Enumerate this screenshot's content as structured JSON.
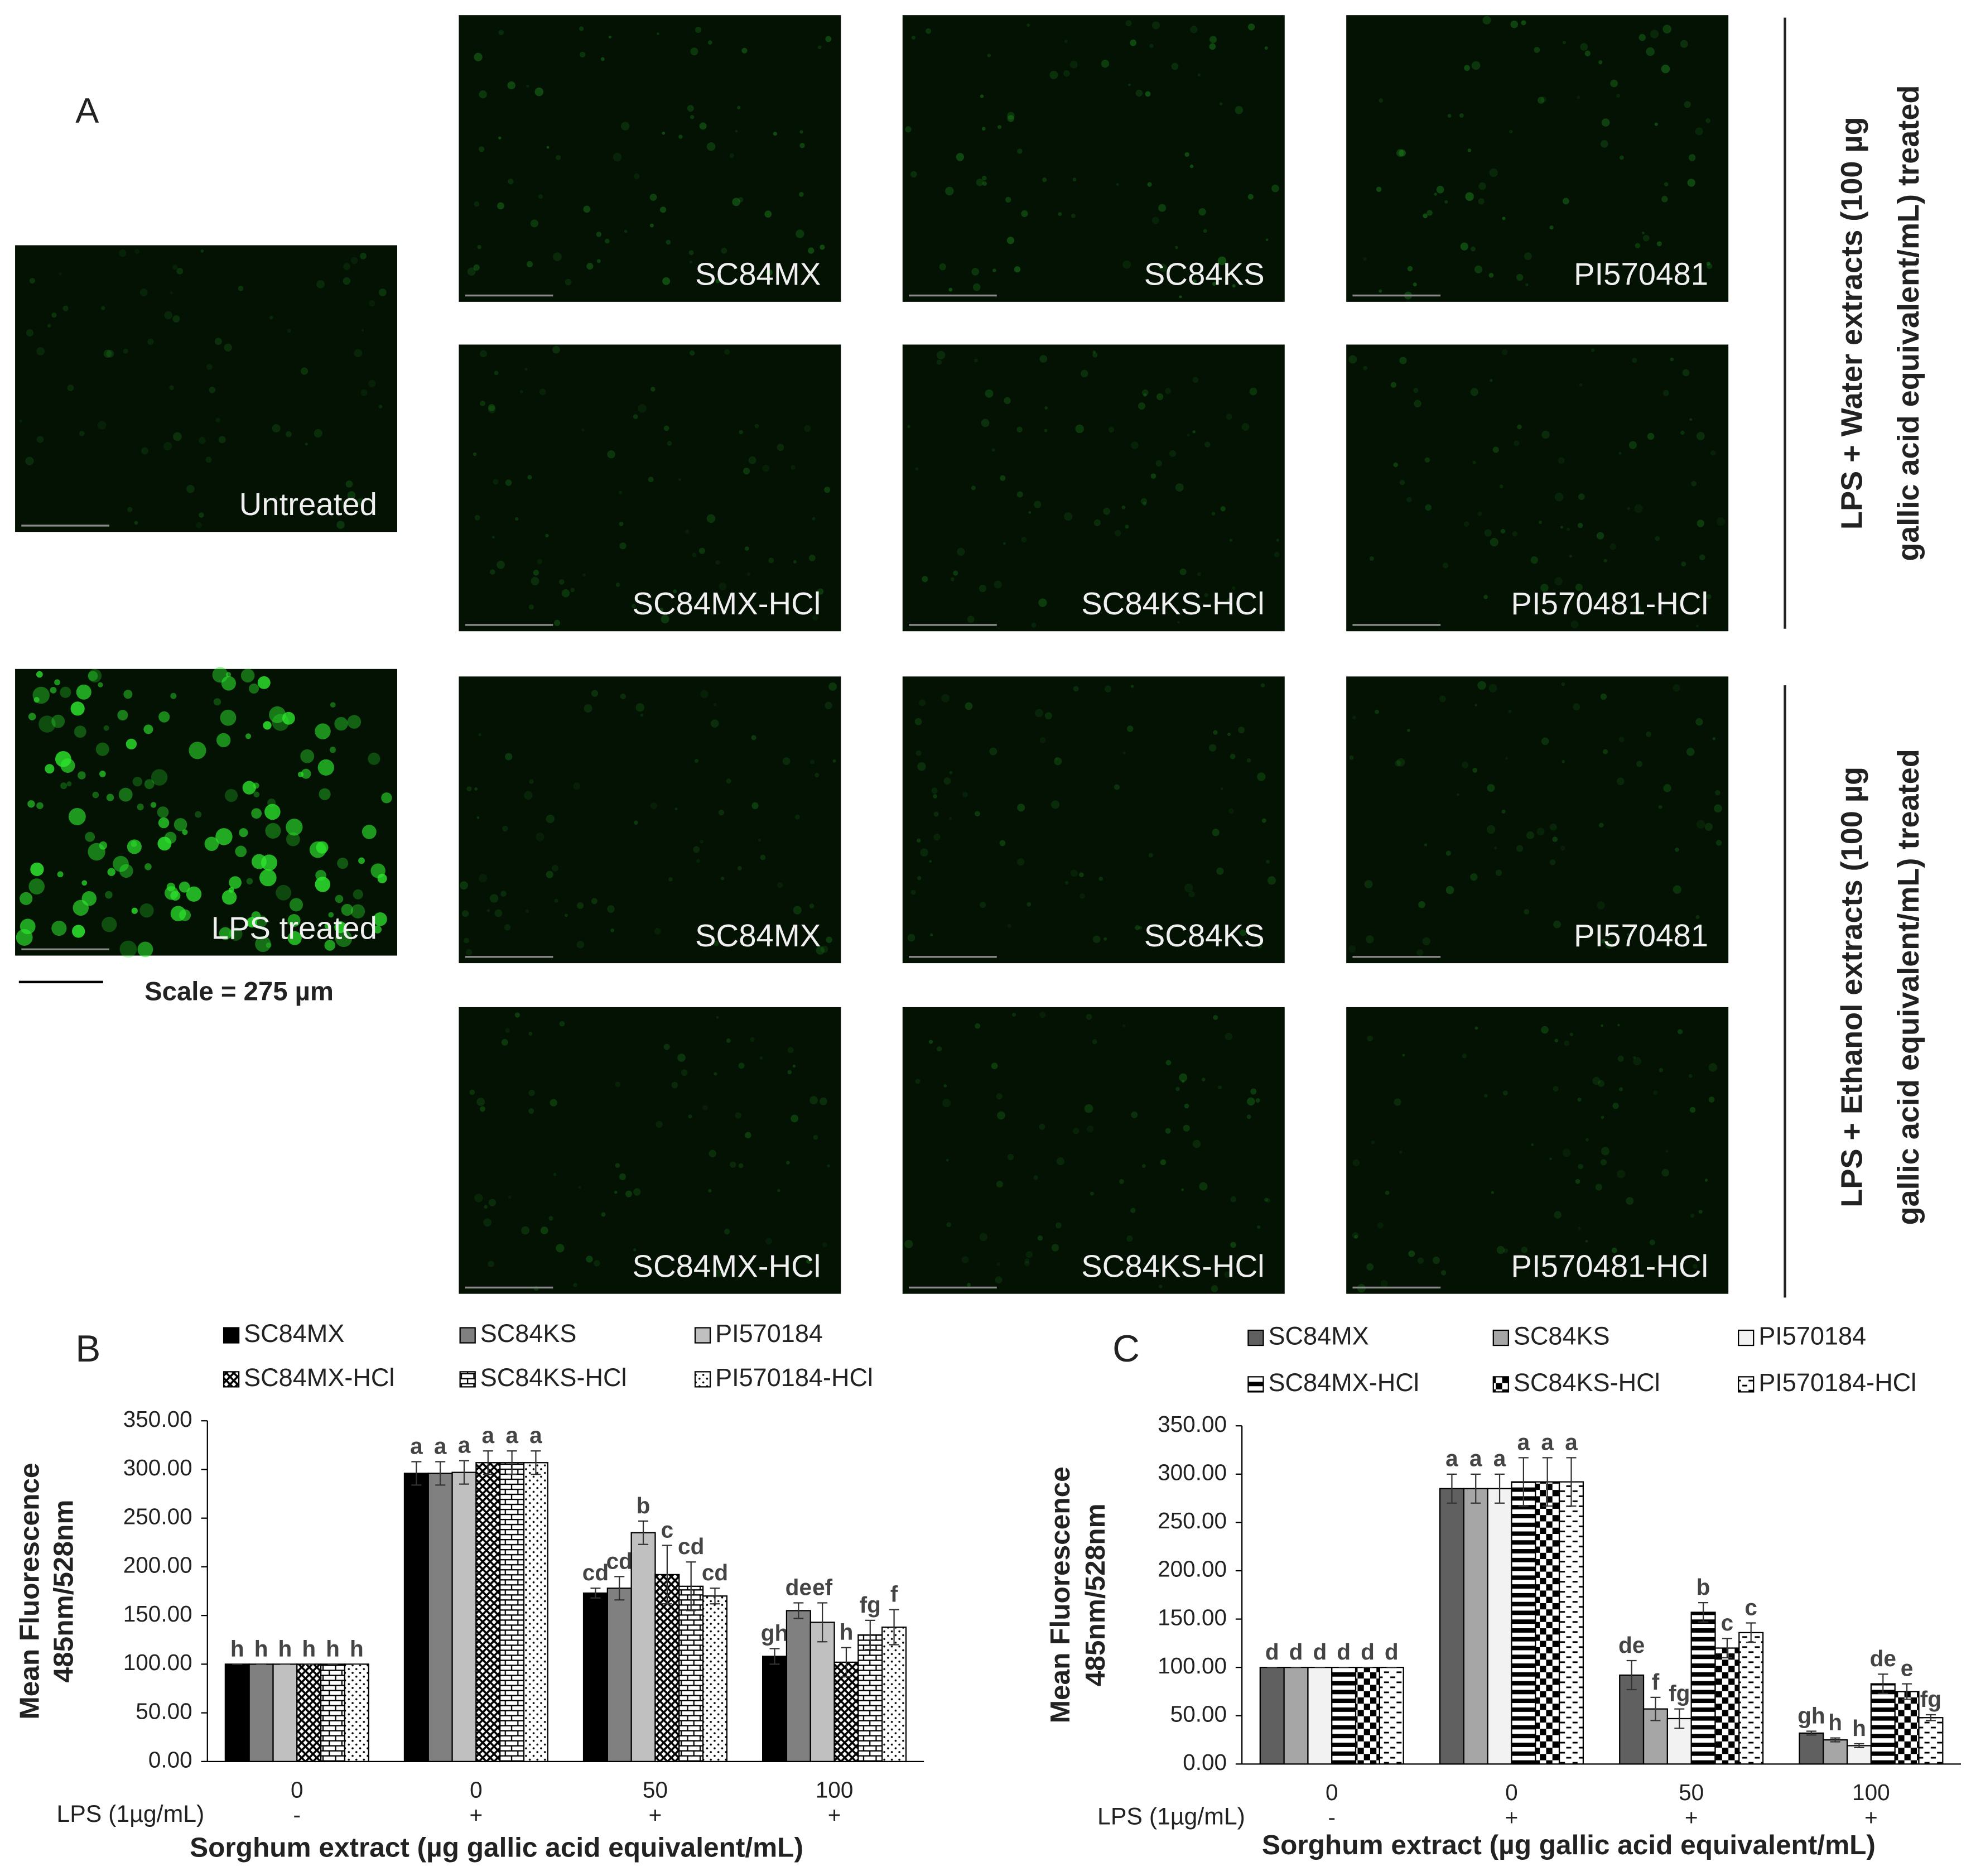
{
  "panel_a": {
    "label": "A",
    "images": [
      "Untreated",
      "LPS treated",
      "SC84MX",
      "SC84KS",
      "PI570481",
      "SC84MX-HCl",
      "SC84KS-HCl",
      "PI570481-HCl",
      "SC84MX",
      "SC84KS",
      "PI570481",
      "SC84MX-HCl",
      "SC84KS-HCl",
      "PI570481-HCl"
    ],
    "scale": "Scale = 275 µm",
    "groups": [
      [
        "LPS + Water extracts (100 µg",
        "gallic acid equivalent/mL)  treated"
      ],
      [
        "LPS + Ethanol extracts (100 µg",
        "gallic acid equivalent/mL)  treated"
      ]
    ]
  },
  "chart_data": [
    {
      "type": "bar",
      "panel_label": "B",
      "categories": [
        "0",
        "0",
        "50",
        "100"
      ],
      "lps": [
        "-",
        "+",
        "+",
        "+"
      ],
      "lps_label": "LPS (1µg/mL)",
      "x_label": "Sorghum extract (µg gallic acid equivalent/mL)",
      "y_label": [
        "Mean Fluorescence",
        "485nm/528nm"
      ],
      "ylim": [
        0,
        350
      ],
      "yticks": [
        {
          "value": 0,
          "label": "0.00"
        },
        {
          "value": 50,
          "label": "50.00"
        },
        {
          "value": 100,
          "label": "100.00"
        },
        {
          "value": 150,
          "label": "150.00"
        },
        {
          "value": 200,
          "label": "200.00"
        },
        {
          "value": 250,
          "label": "250.00"
        },
        {
          "value": 300,
          "label": "300.00"
        },
        {
          "value": 350,
          "label": "350.00"
        }
      ],
      "series": [
        {
          "name": "SC84MX",
          "color": "#000000",
          "pattern": "solid",
          "values": [
            100,
            296,
            173,
            108
          ],
          "errors": [
            0,
            12,
            5,
            8
          ],
          "significance": [
            "h",
            "a",
            "cd",
            "gh"
          ]
        },
        {
          "name": "SC84KS",
          "color": "#808080",
          "pattern": "solid",
          "values": [
            100,
            296,
            178,
            155
          ],
          "errors": [
            0,
            12,
            12,
            8
          ],
          "significance": [
            "h",
            "a",
            "cd",
            "de"
          ]
        },
        {
          "name": "PI570184",
          "color": "#c0c0c0",
          "pattern": "solid",
          "values": [
            100,
            297,
            235,
            143
          ],
          "errors": [
            0,
            12,
            12,
            20
          ],
          "significance": [
            "h",
            "a",
            "b",
            "ef"
          ]
        },
        {
          "name": "SC84MX-HCl",
          "color": "#000000",
          "pattern": "crosshatch",
          "values": [
            100,
            307,
            192,
            102
          ],
          "errors": [
            0,
            12,
            30,
            15
          ],
          "significance": [
            "h",
            "a",
            "c",
            "h"
          ]
        },
        {
          "name": "SC84KS-HCl",
          "color": "#000000",
          "pattern": "brick",
          "values": [
            100,
            307,
            180,
            130
          ],
          "errors": [
            0,
            12,
            25,
            15
          ],
          "significance": [
            "h",
            "a",
            "cd",
            "fg"
          ]
        },
        {
          "name": "PI570184-HCl",
          "color": "#000000",
          "pattern": "dots",
          "values": [
            100,
            307,
            170,
            138
          ],
          "errors": [
            0,
            12,
            8,
            18
          ],
          "significance": [
            "h",
            "a",
            "cd",
            "f"
          ]
        }
      ]
    },
    {
      "type": "bar",
      "panel_label": "C",
      "categories": [
        "0",
        "0",
        "50",
        "100"
      ],
      "lps": [
        "-",
        "+",
        "+",
        "+"
      ],
      "lps_label": "LPS (1µg/mL)",
      "x_label": "Sorghum extract (µg gallic acid equivalent/mL)",
      "y_label": [
        "Mean Fluorescence",
        "485nm/528nm"
      ],
      "ylim": [
        0,
        350
      ],
      "yticks": [
        {
          "value": 0,
          "label": "0.00"
        },
        {
          "value": 50,
          "label": "50.00"
        },
        {
          "value": 100,
          "label": "100.00"
        },
        {
          "value": 150,
          "label": "150.00"
        },
        {
          "value": 200,
          "label": "200.00"
        },
        {
          "value": 250,
          "label": "250.00"
        },
        {
          "value": 300,
          "label": "300.00"
        },
        {
          "value": 350,
          "label": "350.00"
        }
      ],
      "series": [
        {
          "name": "SC84MX",
          "color": "#606060",
          "pattern": "solid",
          "values": [
            100,
            285,
            92,
            32
          ],
          "errors": [
            0,
            15,
            15,
            2
          ],
          "significance": [
            "d",
            "a",
            "de",
            "gh"
          ]
        },
        {
          "name": "SC84KS",
          "color": "#a6a6a6",
          "pattern": "solid",
          "values": [
            100,
            285,
            57,
            25
          ],
          "errors": [
            0,
            15,
            12,
            2
          ],
          "significance": [
            "d",
            "a",
            "f",
            "h"
          ]
        },
        {
          "name": "PI570184",
          "color": "#f2f2f2",
          "pattern": "solid",
          "values": [
            100,
            285,
            47,
            19
          ],
          "errors": [
            0,
            15,
            10,
            2
          ],
          "significance": [
            "d",
            "a",
            "fg",
            "h"
          ]
        },
        {
          "name": "SC84MX-HCl",
          "color": "#000000",
          "pattern": "hstripes",
          "values": [
            100,
            292,
            157,
            83
          ],
          "errors": [
            0,
            25,
            10,
            10
          ],
          "significance": [
            "d",
            "a",
            "b",
            "de"
          ]
        },
        {
          "name": "SC84KS-HCl",
          "color": "#000000",
          "pattern": "checker",
          "values": [
            100,
            292,
            120,
            75
          ],
          "errors": [
            0,
            25,
            10,
            8
          ],
          "significance": [
            "d",
            "a",
            "c",
            "e"
          ]
        },
        {
          "name": "PI570184-HCl",
          "color": "#000000",
          "pattern": "dashes",
          "values": [
            100,
            292,
            136,
            48
          ],
          "errors": [
            0,
            25,
            10,
            3
          ],
          "significance": [
            "d",
            "a",
            "c",
            "fg"
          ]
        }
      ]
    }
  ]
}
